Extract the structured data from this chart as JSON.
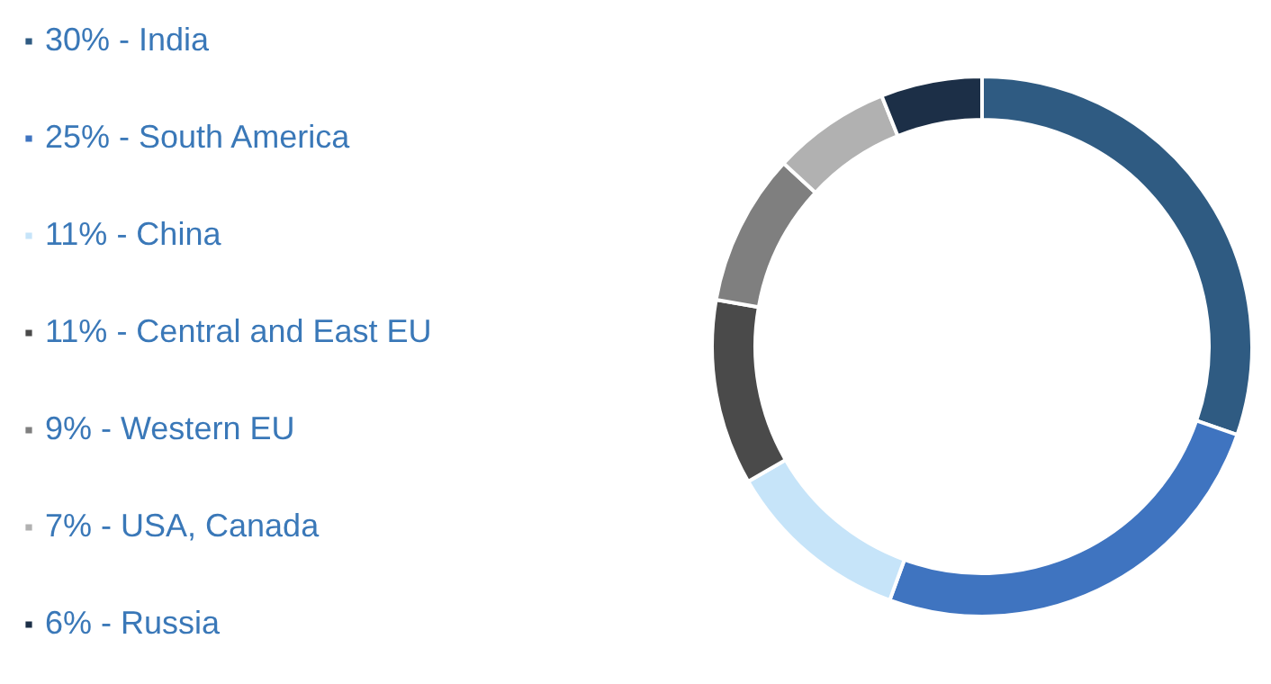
{
  "chart_data": {
    "type": "donut",
    "categories": [
      "30% - India",
      "25% - South America",
      "11% - China",
      "11% - Central and East EU",
      "9% - Western EU",
      "7% - USA, Canada",
      "6% - Russia"
    ],
    "values": [
      30,
      25,
      11,
      11,
      9,
      7,
      6
    ],
    "colors": [
      "#2f5b82",
      "#3f74c0",
      "#c6e4f9",
      "#4a4a4a",
      "#7f7f7f",
      "#b1b1b1",
      "#1c2f47"
    ],
    "legend": "left"
  }
}
